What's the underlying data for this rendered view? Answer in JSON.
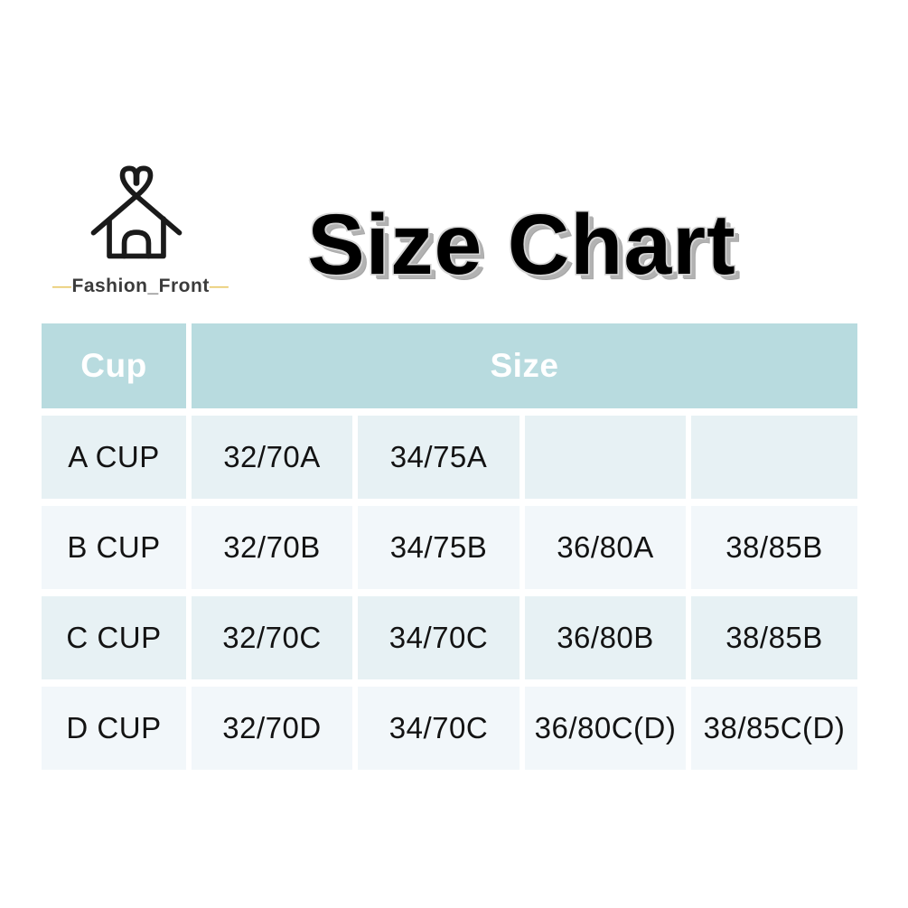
{
  "logo": {
    "icon": "house-heart-icon",
    "left_dash": "—",
    "brand": "Fashion_Front",
    "right_dash": "—",
    "dash_color": "#e6c052",
    "text_color": "#3b3b3b"
  },
  "title": {
    "text": "Size Chart",
    "color": "#000000",
    "shadow_color": "#a8a8a8"
  },
  "table": {
    "header": {
      "cup_label": "Cup",
      "size_label": "Size",
      "bg": "#b8dbdf",
      "text_color": "#ffffff"
    },
    "row_colors": {
      "odd": "#e7f1f4",
      "even": "#f2f7fa"
    },
    "rows": [
      {
        "cup": "A CUP",
        "sizes": [
          "32/70A",
          "34/75A",
          "",
          ""
        ]
      },
      {
        "cup": "B CUP",
        "sizes": [
          "32/70B",
          "34/75B",
          "36/80A",
          "38/85B"
        ]
      },
      {
        "cup": "C CUP",
        "sizes": [
          "32/70C",
          "34/70C",
          "36/80B",
          "38/85B"
        ]
      },
      {
        "cup": "D CUP",
        "sizes": [
          "32/70D",
          "34/70C",
          "36/80C(D)",
          "38/85C(D)"
        ]
      }
    ]
  },
  "chart_data": {
    "type": "table",
    "title": "Size Chart",
    "columns": [
      "Cup",
      "Size",
      "Size",
      "Size",
      "Size"
    ],
    "rows": [
      [
        "A CUP",
        "32/70A",
        "34/75A",
        "",
        ""
      ],
      [
        "B CUP",
        "32/70B",
        "34/75B",
        "36/80A",
        "38/85B"
      ],
      [
        "C CUP",
        "32/70C",
        "34/70C",
        "36/80B",
        "38/85B"
      ],
      [
        "D CUP",
        "32/70D",
        "34/70C",
        "36/80C(D)",
        "38/85C(D)"
      ]
    ],
    "layout": {
      "header_bg": "#b8dbdf",
      "row_bg_alternating": [
        "#e7f1f4",
        "#f2f7fa"
      ],
      "grid": "white gaps between cells",
      "merged_header": "Size spans columns 2-5"
    }
  }
}
